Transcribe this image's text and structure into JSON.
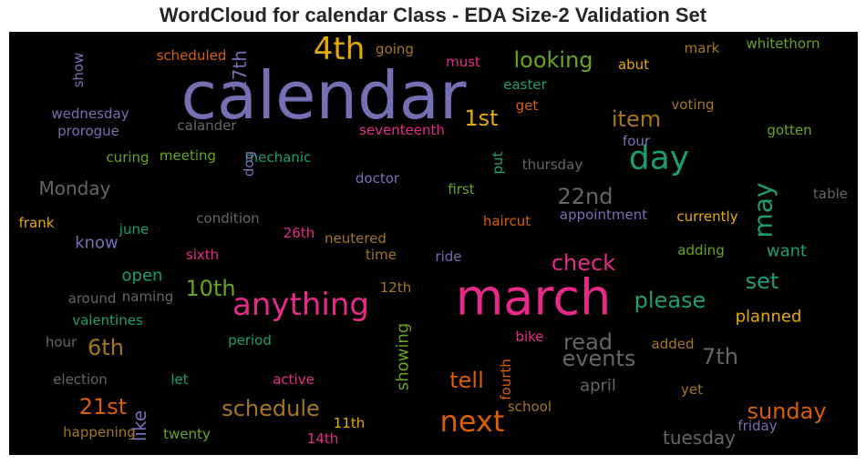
{
  "title": "WordCloud for calendar Class - EDA Size-2 Validation Set",
  "chart_data": {
    "type": "wordcloud",
    "title": "WordCloud for calendar Class - EDA Size-2 Validation Set",
    "background": "#000000",
    "words": [
      {
        "text": "calendar",
        "weight": 100,
        "color": "#7570b3"
      },
      {
        "text": "march",
        "weight": 85,
        "color": "#e7298a"
      },
      {
        "text": "anything",
        "weight": 55,
        "color": "#e7298a"
      },
      {
        "text": "4th",
        "weight": 50,
        "color": "#e6ab02"
      },
      {
        "text": "day",
        "weight": 50,
        "color": "#1b9e77"
      },
      {
        "text": "next",
        "weight": 48,
        "color": "#d95f02"
      },
      {
        "text": "looking",
        "weight": 36,
        "color": "#66a61e"
      },
      {
        "text": "item",
        "weight": 36,
        "color": "#a6761d"
      },
      {
        "text": "1st",
        "weight": 36,
        "color": "#e6ab02"
      },
      {
        "text": "22nd",
        "weight": 36,
        "color": "#666666"
      },
      {
        "text": "may",
        "weight": 38,
        "color": "#1b9e77"
      },
      {
        "text": "check",
        "weight": 36,
        "color": "#e7298a"
      },
      {
        "text": "please",
        "weight": 36,
        "color": "#1b9e77"
      },
      {
        "text": "set",
        "weight": 36,
        "color": "#1b9e77"
      },
      {
        "text": "10th",
        "weight": 36,
        "color": "#66a61e"
      },
      {
        "text": "6th",
        "weight": 36,
        "color": "#a6761d"
      },
      {
        "text": "read",
        "weight": 36,
        "color": "#666666"
      },
      {
        "text": "events",
        "weight": 36,
        "color": "#666666"
      },
      {
        "text": "7th",
        "weight": 36,
        "color": "#666666"
      },
      {
        "text": "tell",
        "weight": 36,
        "color": "#d95f02"
      },
      {
        "text": "21st",
        "weight": 36,
        "color": "#d95f02"
      },
      {
        "text": "schedule",
        "weight": 36,
        "color": "#a6761d"
      },
      {
        "text": "sunday",
        "weight": 36,
        "color": "#d95f02"
      },
      {
        "text": "tuesday",
        "weight": 30,
        "color": "#666666"
      },
      {
        "text": "17th",
        "weight": 28,
        "color": "#7570b3"
      },
      {
        "text": "Monday",
        "weight": 28,
        "color": "#666666"
      },
      {
        "text": "know",
        "weight": 28,
        "color": "#7570b3"
      },
      {
        "text": "open",
        "weight": 28,
        "color": "#1b9e77"
      },
      {
        "text": "want",
        "weight": 28,
        "color": "#1b9e77"
      },
      {
        "text": "planned",
        "weight": 28,
        "color": "#e6ab02"
      },
      {
        "text": "april",
        "weight": 28,
        "color": "#666666"
      },
      {
        "text": "showing",
        "weight": 28,
        "color": "#66a61e"
      },
      {
        "text": "like",
        "weight": 28,
        "color": "#7570b3"
      },
      {
        "text": "scheduled",
        "weight": 22,
        "color": "#d95f02"
      },
      {
        "text": "going",
        "weight": 22,
        "color": "#a6761d"
      },
      {
        "text": "must",
        "weight": 22,
        "color": "#e7298a"
      },
      {
        "text": "abut",
        "weight": 22,
        "color": "#e6ab02"
      },
      {
        "text": "mark",
        "weight": 22,
        "color": "#a6761d"
      },
      {
        "text": "whitethorn",
        "weight": 22,
        "color": "#66a61e"
      },
      {
        "text": "show",
        "weight": 22,
        "color": "#7570b3"
      },
      {
        "text": "easter",
        "weight": 22,
        "color": "#1b9e77"
      },
      {
        "text": "get",
        "weight": 22,
        "color": "#d95f02"
      },
      {
        "text": "voting",
        "weight": 22,
        "color": "#a6761d"
      },
      {
        "text": "wednesday",
        "weight": 22,
        "color": "#7570b3"
      },
      {
        "text": "prorogue",
        "weight": 22,
        "color": "#7570b3"
      },
      {
        "text": "calander",
        "weight": 22,
        "color": "#666666"
      },
      {
        "text": "seventeenth",
        "weight": 22,
        "color": "#e7298a"
      },
      {
        "text": "four",
        "weight": 22,
        "color": "#7570b3"
      },
      {
        "text": "gotten",
        "weight": 22,
        "color": "#66a61e"
      },
      {
        "text": "curing",
        "weight": 22,
        "color": "#66a61e"
      },
      {
        "text": "meeting",
        "weight": 22,
        "color": "#66a61e"
      },
      {
        "text": "mechanic",
        "weight": 22,
        "color": "#1b9e77"
      },
      {
        "text": "dog",
        "weight": 22,
        "color": "#7570b3"
      },
      {
        "text": "put",
        "weight": 22,
        "color": "#1b9e77"
      },
      {
        "text": "thursday",
        "weight": 22,
        "color": "#666666"
      },
      {
        "text": "doctor",
        "weight": 22,
        "color": "#7570b3"
      },
      {
        "text": "first",
        "weight": 22,
        "color": "#66a61e"
      },
      {
        "text": "table",
        "weight": 22,
        "color": "#666666"
      },
      {
        "text": "frank",
        "weight": 22,
        "color": "#e6ab02"
      },
      {
        "text": "june",
        "weight": 22,
        "color": "#1b9e77"
      },
      {
        "text": "condition",
        "weight": 22,
        "color": "#666666"
      },
      {
        "text": "haircut",
        "weight": 22,
        "color": "#d95f02"
      },
      {
        "text": "appointment",
        "weight": 22,
        "color": "#7570b3"
      },
      {
        "text": "currently",
        "weight": 22,
        "color": "#e6ab02"
      },
      {
        "text": "26th",
        "weight": 22,
        "color": "#e7298a"
      },
      {
        "text": "neutered",
        "weight": 22,
        "color": "#a6761d"
      },
      {
        "text": "sixth",
        "weight": 22,
        "color": "#e7298a"
      },
      {
        "text": "time",
        "weight": 22,
        "color": "#a6761d"
      },
      {
        "text": "ride",
        "weight": 22,
        "color": "#7570b3"
      },
      {
        "text": "adding",
        "weight": 22,
        "color": "#66a61e"
      },
      {
        "text": "around",
        "weight": 22,
        "color": "#666666"
      },
      {
        "text": "naming",
        "weight": 22,
        "color": "#666666"
      },
      {
        "text": "12th",
        "weight": 22,
        "color": "#a6761d"
      },
      {
        "text": "valentines",
        "weight": 22,
        "color": "#1b9e77"
      },
      {
        "text": "hour",
        "weight": 22,
        "color": "#666666"
      },
      {
        "text": "period",
        "weight": 22,
        "color": "#1b9e77"
      },
      {
        "text": "bike",
        "weight": 22,
        "color": "#e7298a"
      },
      {
        "text": "added",
        "weight": 22,
        "color": "#a6761d"
      },
      {
        "text": "election",
        "weight": 22,
        "color": "#666666"
      },
      {
        "text": "let",
        "weight": 22,
        "color": "#1b9e77"
      },
      {
        "text": "active",
        "weight": 22,
        "color": "#e7298a"
      },
      {
        "text": "fourth",
        "weight": 22,
        "color": "#d95f02"
      },
      {
        "text": "yet",
        "weight": 22,
        "color": "#a6761d"
      },
      {
        "text": "school",
        "weight": 22,
        "color": "#a6761d"
      },
      {
        "text": "happening",
        "weight": 22,
        "color": "#a6761d"
      },
      {
        "text": "twenty",
        "weight": 22,
        "color": "#66a61e"
      },
      {
        "text": "11th",
        "weight": 22,
        "color": "#e6ab02"
      },
      {
        "text": "14th",
        "weight": 22,
        "color": "#e7298a"
      },
      {
        "text": "friday",
        "weight": 22,
        "color": "#7570b3"
      }
    ]
  }
}
